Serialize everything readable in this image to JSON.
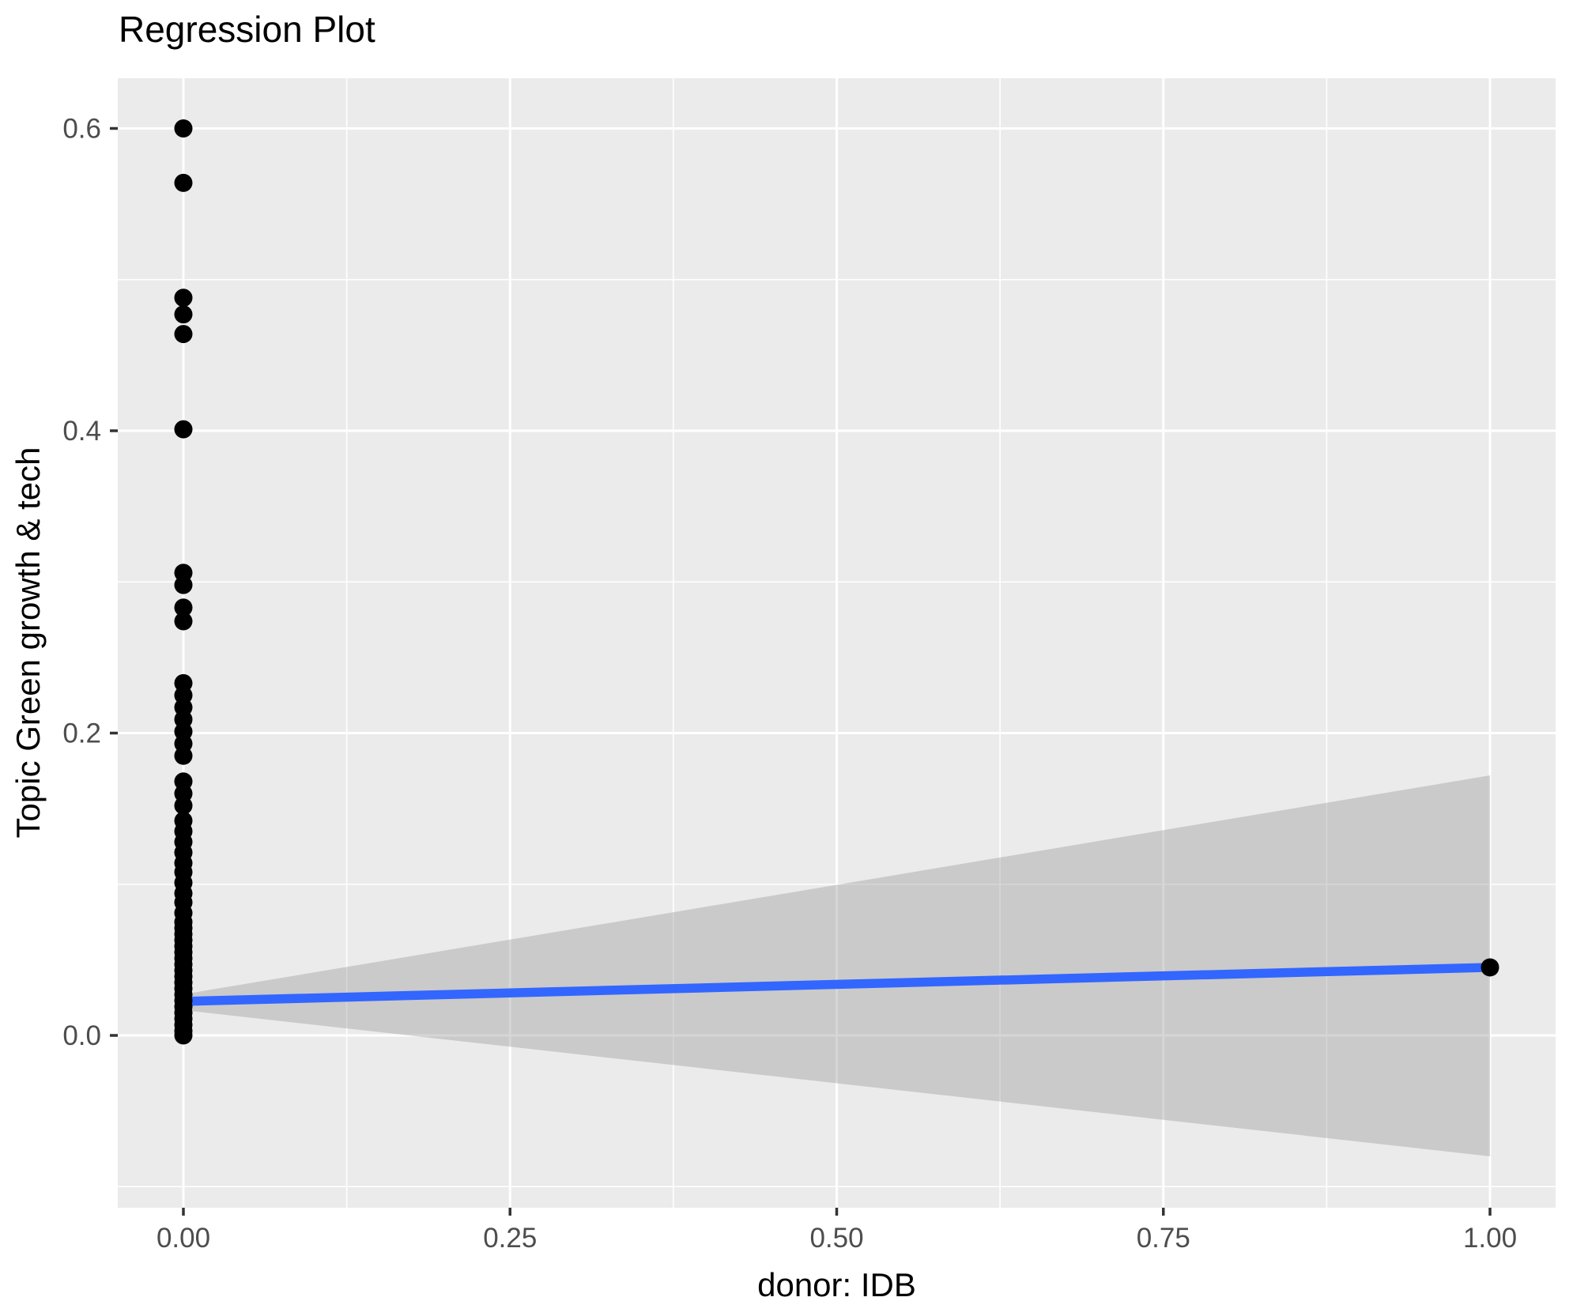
{
  "title": "Regression Plot",
  "colors": {
    "background": "#FFFFFF",
    "panel_background": "#EBEBEB",
    "gridline": "#FFFFFF",
    "confidence_band": "rgba(153,153,153,0.4)",
    "regression_line": "#3366FF",
    "point": "#000000",
    "tick_mark": "#333333",
    "tick_label": "#4D4D4D",
    "text": "#000000"
  },
  "chart_data": {
    "type": "scatter",
    "title": "Regression Plot",
    "xlabel": "donor: IDB",
    "ylabel": "Topic Green growth & tech",
    "legend": false,
    "grid": true,
    "xlim": [
      -0.0508,
      1.0496
    ],
    "ylim": [
      -0.1135,
      0.6337
    ],
    "x_major_ticks": {
      "values": [
        0.0,
        0.25,
        0.5,
        0.75,
        1.0
      ],
      "labels": [
        "0.00",
        "0.25",
        "0.50",
        "0.75",
        "1.00"
      ]
    },
    "y_major_ticks": {
      "values": [
        0.0,
        0.2,
        0.4,
        0.6
      ],
      "labels": [
        "0.0",
        "0.2",
        "0.4",
        "0.6"
      ]
    },
    "x_minor_gridlines": [
      0.125,
      0.375,
      0.625,
      0.875
    ],
    "y_minor_gridlines": [
      -0.1,
      0.1,
      0.3,
      0.5
    ],
    "points": [
      {
        "x": 0.0,
        "y": [
          0.6,
          0.564,
          0.488,
          0.477,
          0.464,
          0.401,
          0.306,
          0.298,
          0.283,
          0.274,
          0.233,
          0.225,
          0.217,
          0.209,
          0.201,
          0.193,
          0.185,
          0.168,
          0.16,
          0.152,
          0.142,
          0.135,
          0.128,
          0.121,
          0.114,
          0.108,
          0.101,
          0.094,
          0.088,
          0.081,
          0.075,
          0.071,
          0.067,
          0.063,
          0.059,
          0.055,
          0.051,
          0.047,
          0.043,
          0.039,
          0.035,
          0.031,
          0.027,
          0.023,
          0.019,
          0.015,
          0.011,
          0.007,
          0.003,
          0.0
        ]
      },
      {
        "x": 1.0,
        "y": [
          0.045
        ]
      }
    ],
    "regression_line": {
      "x": [
        0.0,
        1.0
      ],
      "y": [
        0.0225,
        0.045
      ]
    },
    "confidence_band": {
      "x": [
        0.0,
        1.0
      ],
      "upper": [
        0.0272,
        0.172
      ],
      "lower": [
        0.0167,
        -0.08
      ]
    }
  }
}
